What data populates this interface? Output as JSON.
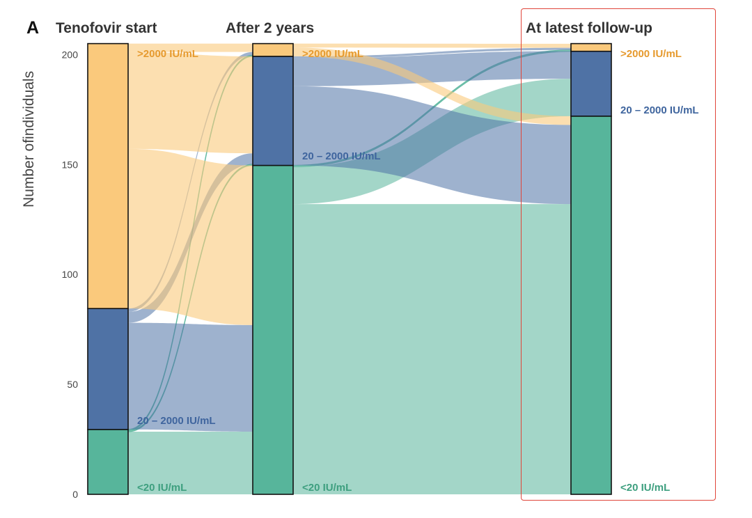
{
  "panel": {
    "letter": "A"
  },
  "colors": {
    "high": "#FAC97C",
    "mid": "#4F72A5",
    "low": "#57B59B",
    "high_label": "#E69A2E",
    "mid_label": "#3F659E",
    "low_label": "#3E9F7F",
    "highlight": "#E0453A"
  },
  "chart_data": {
    "type": "alluvial",
    "title": "",
    "xlabel": "",
    "ylabel": "Number ofindividuals",
    "ylim": [
      0,
      205
    ],
    "yticks": [
      0,
      50,
      100,
      150,
      200
    ],
    "stages": [
      "Tenofovir start",
      "After 2 years",
      "At latest follow-up"
    ],
    "categories": [
      {
        "key": "low",
        "label": "<20 IU/mL"
      },
      {
        "key": "mid",
        "label": "20 – 2000 IU/mL"
      },
      {
        "key": "high",
        "label": ">2000 IU/mL"
      }
    ],
    "totals": [
      {
        "low": 29.5,
        "mid": 84.5,
        "high": 205
      },
      {
        "low": 149.6,
        "mid": 199.2,
        "high": 205
      },
      {
        "low": 172,
        "mid": 201.5,
        "high": 205
      }
    ],
    "flows": [
      {
        "from_stage": 0,
        "from": "low",
        "to": "low",
        "value": 28.5
      },
      {
        "from_stage": 0,
        "from": "low",
        "to": "mid",
        "value": 0.5
      },
      {
        "from_stage": 0,
        "from": "low",
        "to": "high",
        "value": 0.5
      },
      {
        "from_stage": 0,
        "from": "mid",
        "to": "low",
        "value": 48.5
      },
      {
        "from_stage": 0,
        "from": "mid",
        "to": "mid",
        "value": 5
      },
      {
        "from_stage": 0,
        "from": "mid",
        "to": "high",
        "value": 1.5
      },
      {
        "from_stage": 0,
        "from": "high",
        "to": "low",
        "value": 72.6
      },
      {
        "from_stage": 0,
        "from": "high",
        "to": "mid",
        "value": 44.1
      },
      {
        "from_stage": 0,
        "from": "high",
        "to": "high",
        "value": 3.8
      },
      {
        "from_stage": 1,
        "from": "low",
        "to": "low",
        "value": 132
      },
      {
        "from_stage": 1,
        "from": "low",
        "to": "mid",
        "value": 17
      },
      {
        "from_stage": 1,
        "from": "low",
        "to": "high",
        "value": 0.6
      },
      {
        "from_stage": 1,
        "from": "mid",
        "to": "low",
        "value": 36
      },
      {
        "from_stage": 1,
        "from": "mid",
        "to": "mid",
        "value": 12.6
      },
      {
        "from_stage": 1,
        "from": "mid",
        "to": "high",
        "value": 1
      },
      {
        "from_stage": 1,
        "from": "high",
        "to": "low",
        "value": 4
      },
      {
        "from_stage": 1,
        "from": "high",
        "to": "mid",
        "value": 0
      },
      {
        "from_stage": 1,
        "from": "high",
        "to": "high",
        "value": 1.8
      }
    ],
    "node_labels": [
      {
        "stage": 0,
        "cat": "high",
        "text": ">2000 IU/mL"
      },
      {
        "stage": 0,
        "cat": "mid",
        "text": "20 – 2000 IU/mL"
      },
      {
        "stage": 0,
        "cat": "low",
        "text": "<20 IU/mL"
      },
      {
        "stage": 1,
        "cat": "high",
        "text": ">2000 IU/mL"
      },
      {
        "stage": 1,
        "cat": "mid",
        "text": "20 – 2000 IU/mL"
      },
      {
        "stage": 1,
        "cat": "low",
        "text": "<20 IU/mL"
      },
      {
        "stage": 2,
        "cat": "high",
        "text": ">2000 IU/mL"
      },
      {
        "stage": 2,
        "cat": "mid",
        "text": "20 – 2000 IU/mL"
      },
      {
        "stage": 2,
        "cat": "low",
        "text": "<20 IU/mL"
      }
    ],
    "highlighted_stage": "At latest follow-up",
    "grid": false,
    "legend": "none"
  }
}
